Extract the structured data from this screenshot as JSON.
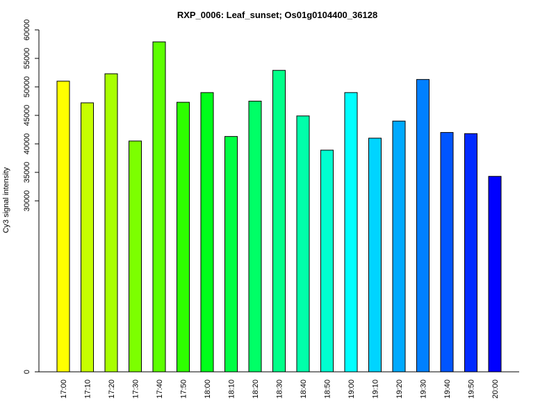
{
  "chart_data": {
    "type": "bar",
    "title": "RXP_0006: Leaf_sunset; Os01g0104400_36128",
    "xlabel": "",
    "ylabel": "Cy3 signal intensity",
    "ylim": [
      0,
      60000
    ],
    "yticks": [
      {
        "value": 0,
        "label": "0"
      },
      {
        "value": 30000,
        "label": "30000"
      },
      {
        "value": 35000,
        "label": "35000"
      },
      {
        "value": 40000,
        "label": "40000"
      },
      {
        "value": 45000,
        "label": "45000"
      },
      {
        "value": 50000,
        "label": "50000"
      },
      {
        "value": 55000,
        "label": "55000"
      },
      {
        "value": 60000,
        "label": "60000"
      }
    ],
    "categories": [
      "17:00",
      "17:10",
      "17:20",
      "17:30",
      "17:40",
      "17:50",
      "18:00",
      "18:10",
      "18:20",
      "18:30",
      "18:40",
      "18:50",
      "19:00",
      "19:10",
      "19:20",
      "19:30",
      "19:40",
      "19:50",
      "20:00"
    ],
    "values": [
      51000,
      47200,
      52300,
      40500,
      57900,
      47300,
      49000,
      41300,
      47500,
      52900,
      44900,
      38900,
      49000,
      41000,
      44000,
      51300,
      42000,
      41800,
      34300
    ],
    "colors": [
      "#ffff00",
      "#c6ff00",
      "#a8ff00",
      "#7cff00",
      "#5cff00",
      "#2eff00",
      "#00ff1a",
      "#00ff44",
      "#00ff66",
      "#00ff88",
      "#00ffaa",
      "#00ffd0",
      "#00ffff",
      "#00d4ff",
      "#00aaff",
      "#0080ff",
      "#0055ff",
      "#002aff",
      "#0000ff"
    ],
    "grid": false,
    "legend": "none"
  }
}
